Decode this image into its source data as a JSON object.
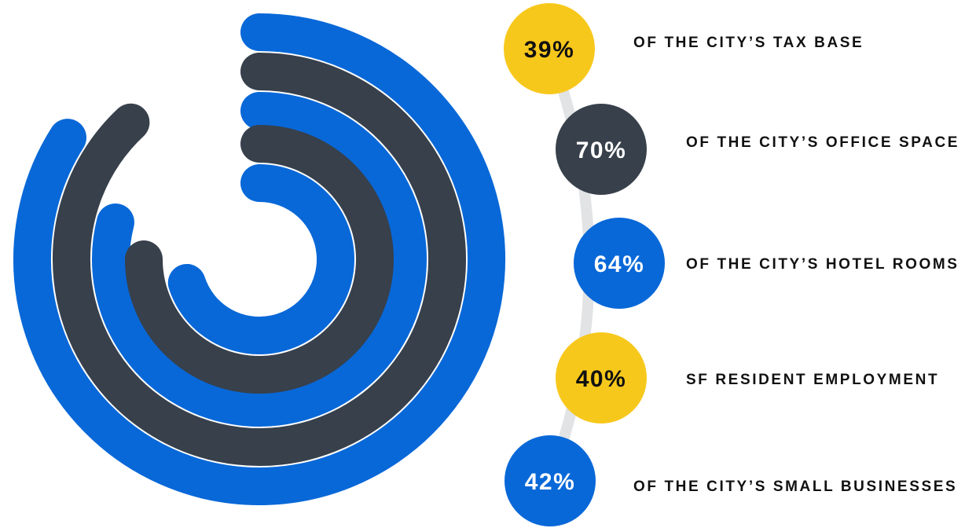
{
  "colors": {
    "blue": "#0868d8",
    "dark": "#37404b",
    "yellow": "#f7c81c",
    "connector": "#e2e3e5",
    "text": "#111111",
    "white": "#ffffff"
  },
  "chart_data": {
    "type": "radial-bar",
    "title": "",
    "series": [
      {
        "value": 39,
        "label": "39%",
        "description": "OF THE CITY’S TAX BASE",
        "color": "yellow"
      },
      {
        "value": 70,
        "label": "70%",
        "description": "OF THE CITY’S OFFICE SPACE",
        "color": "dark"
      },
      {
        "value": 64,
        "label": "64%",
        "description": "OF THE CITY’S HOTEL ROOMS",
        "color": "blue"
      },
      {
        "value": 40,
        "label": "40%",
        "description": "SF RESIDENT EMPLOYMENT",
        "color": "yellow"
      },
      {
        "value": 42,
        "label": "42%",
        "description": "OF THE CITY’S SMALL BUSINESSES",
        "color": "blue"
      }
    ],
    "rings": [
      {
        "color": "blue",
        "value": 84
      },
      {
        "color": "dark",
        "value": 88
      },
      {
        "color": "blue",
        "value": 79
      },
      {
        "color": "dark",
        "value": 75
      },
      {
        "color": "blue",
        "value": 70
      }
    ],
    "unit": "%",
    "max": 100
  }
}
